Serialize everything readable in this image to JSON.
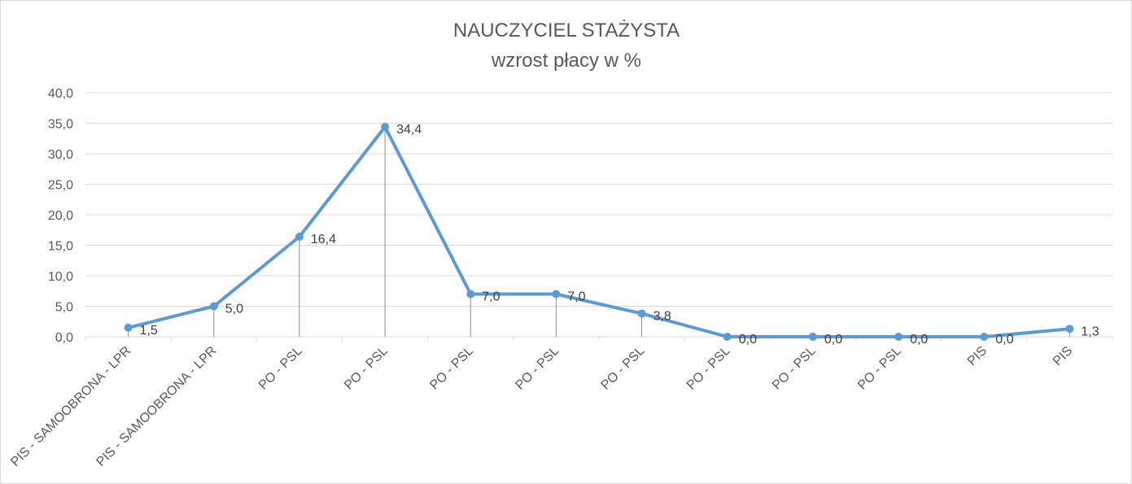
{
  "chart_data": {
    "type": "line",
    "title": "NAUCZYCIEL STAŻYSTA",
    "subtitle": "wzrost płacy w %",
    "categories": [
      "PIS - SAMOOBRONA - LPR",
      "PIS - SAMOOBRONA - LPR",
      "PO - PSL",
      "PO - PSL",
      "PO - PSL",
      "PO - PSL",
      "PO - PSL",
      "PO - PSL",
      "PO - PSL",
      "PO - PSL",
      "PIS",
      "PIS"
    ],
    "series": [
      {
        "values": [
          1.5,
          5.0,
          16.4,
          34.4,
          7.0,
          7.0,
          3.8,
          0.0,
          0.0,
          0.0,
          0.0,
          1.3
        ],
        "data_labels": [
          "1,5",
          "5,0",
          "16,4",
          "34,4",
          "7,0",
          "7,0",
          "3,8",
          "0,0",
          "0,0",
          "0,0",
          "0,0",
          "1,3"
        ],
        "color": "#5b9bd5"
      }
    ],
    "yticks": [
      "0,0",
      "5,0",
      "10,0",
      "15,0",
      "20,0",
      "25,0",
      "30,0",
      "35,0",
      "40,0"
    ],
    "ylim": [
      0,
      40
    ],
    "ystep": 5,
    "grid": true,
    "drop_lines": true,
    "legend": "none",
    "xlabel": "",
    "ylabel": ""
  }
}
